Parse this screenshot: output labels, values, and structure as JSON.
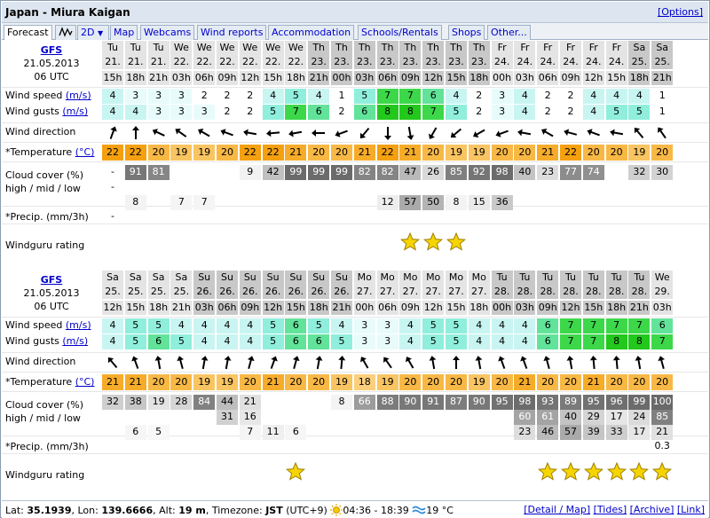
{
  "title": "Japan - Miura Kaigan",
  "options_link": "[Options]",
  "tabs": [
    "Forecast",
    "Map",
    "Webcams",
    "Wind reports",
    "Accommodation",
    "Schools/Rentals",
    "Shops",
    "Other..."
  ],
  "tab_2d": "2D",
  "labels": {
    "wind_speed": "Wind speed",
    "wind_gusts": "Wind gusts",
    "unit_ms": "(m/s)",
    "wind_direction": "Wind direction",
    "temperature": "*Temperature",
    "unit_c": "(°C)",
    "cloud1": "Cloud cover (%)",
    "cloud2": "high / mid / low",
    "precip": "*Precip. (mm/3h)",
    "rating": "Windguru rating"
  },
  "blocks": [
    {
      "model": "GFS",
      "date": "21.05.2013",
      "run": "06 UTC",
      "days": [
        "Tu",
        "Tu",
        "Tu",
        "We",
        "We",
        "We",
        "We",
        "We",
        "We",
        "Th",
        "Th",
        "Th",
        "Th",
        "Th",
        "Th",
        "Th",
        "Th",
        "Fr",
        "Fr",
        "Fr",
        "Fr",
        "Fr",
        "Fr",
        "Sa",
        "Sa"
      ],
      "dates": [
        "21.",
        "21.",
        "21.",
        "22.",
        "22.",
        "22.",
        "22.",
        "22.",
        "22.",
        "23.",
        "23.",
        "23.",
        "23.",
        "23.",
        "23.",
        "23.",
        "23.",
        "24.",
        "24.",
        "24.",
        "24.",
        "24.",
        "24.",
        "25.",
        "25."
      ],
      "hours": [
        "15h",
        "18h",
        "21h",
        "03h",
        "06h",
        "09h",
        "12h",
        "15h",
        "18h",
        "21h",
        "00h",
        "03h",
        "06h",
        "09h",
        "12h",
        "15h",
        "18h",
        "00h",
        "03h",
        "06h",
        "09h",
        "12h",
        "15h",
        "18h",
        "21h"
      ],
      "speed": [
        4,
        3,
        3,
        3,
        2,
        2,
        2,
        4,
        5,
        4,
        1,
        5,
        7,
        7,
        6,
        4,
        2,
        3,
        4,
        2,
        2,
        4,
        4,
        4,
        1
      ],
      "gusts": [
        4,
        4,
        3,
        3,
        3,
        2,
        2,
        5,
        7,
        6,
        2,
        6,
        8,
        8,
        7,
        5,
        2,
        3,
        4,
        2,
        2,
        4,
        5,
        5,
        1
      ],
      "dir": [
        20,
        0,
        -65,
        -55,
        -60,
        -70,
        -80,
        -95,
        -100,
        -90,
        -110,
        -140,
        180,
        170,
        -150,
        -130,
        -120,
        -110,
        -80,
        -60,
        -75,
        -70,
        -80,
        -40,
        -35
      ],
      "temp": [
        22,
        22,
        20,
        19,
        19,
        20,
        22,
        22,
        21,
        20,
        20,
        21,
        22,
        21,
        20,
        19,
        19,
        20,
        20,
        21,
        22,
        20,
        20,
        19,
        20
      ],
      "cloud_high": [
        "-",
        "91",
        "81",
        "",
        "",
        "",
        "9",
        "42",
        "99",
        "99",
        "99",
        "82",
        "82",
        "47",
        "26",
        "85",
        "92",
        "98",
        "40",
        "23",
        "77",
        "74",
        "",
        "32",
        "30"
      ],
      "cloud_mid": [
        "-",
        "",
        "",
        "",
        "",
        "",
        "",
        "",
        "",
        "",
        "",
        "",
        "",
        "",
        "",
        "",
        "",
        "",
        "",
        "",
        "",
        "",
        "",
        "",
        ""
      ],
      "cloud_low": [
        "",
        "8",
        "",
        "7",
        "7",
        "",
        "",
        "",
        "",
        "",
        "",
        "",
        "12",
        "57",
        "50",
        "8",
        "15",
        "36",
        "",
        "",
        "",
        "",
        "",
        "",
        ""
      ],
      "precip": [
        "-",
        "",
        "",
        "",
        "",
        "",
        "",
        "",
        "",
        "",
        "",
        "",
        "",
        "",
        "",
        "",
        "",
        "",
        "",
        "",
        "",
        "",
        "",
        "",
        ""
      ],
      "stars": [
        0,
        0,
        0,
        0,
        0,
        0,
        0,
        0,
        0,
        0,
        0,
        0,
        0,
        1,
        1,
        1,
        0,
        0,
        0,
        0,
        0,
        0,
        0,
        0,
        0
      ]
    },
    {
      "model": "GFS",
      "date": "21.05.2013",
      "run": "06 UTC",
      "days": [
        "Sa",
        "Sa",
        "Sa",
        "Sa",
        "Su",
        "Su",
        "Su",
        "Su",
        "Su",
        "Su",
        "Su",
        "Mo",
        "Mo",
        "Mo",
        "Mo",
        "Mo",
        "Mo",
        "Tu",
        "Tu",
        "Tu",
        "Tu",
        "Tu",
        "Tu",
        "Tu",
        "We"
      ],
      "dates": [
        "25.",
        "25.",
        "25.",
        "25.",
        "26.",
        "26.",
        "26.",
        "26.",
        "26.",
        "26.",
        "26.",
        "27.",
        "27.",
        "27.",
        "27.",
        "27.",
        "27.",
        "28.",
        "28.",
        "28.",
        "28.",
        "28.",
        "28.",
        "28.",
        "29."
      ],
      "hours": [
        "12h",
        "15h",
        "18h",
        "21h",
        "03h",
        "06h",
        "09h",
        "12h",
        "15h",
        "18h",
        "21h",
        "00h",
        "06h",
        "09h",
        "12h",
        "15h",
        "18h",
        "00h",
        "03h",
        "09h",
        "12h",
        "15h",
        "18h",
        "21h",
        "03h"
      ],
      "speed": [
        4,
        5,
        5,
        4,
        4,
        4,
        4,
        5,
        6,
        5,
        4,
        3,
        3,
        4,
        5,
        5,
        4,
        4,
        4,
        6,
        7,
        7,
        7,
        7,
        6
      ],
      "gusts": [
        4,
        5,
        6,
        5,
        4,
        4,
        4,
        5,
        6,
        6,
        5,
        3,
        3,
        4,
        5,
        5,
        4,
        4,
        4,
        6,
        7,
        7,
        8,
        8,
        7
      ],
      "dir": [
        -40,
        -20,
        -10,
        -15,
        10,
        10,
        15,
        20,
        15,
        10,
        5,
        -30,
        -35,
        -30,
        -10,
        0,
        -10,
        -20,
        -20,
        -15,
        -10,
        -5,
        -5,
        -10,
        -15
      ],
      "temp": [
        21,
        21,
        20,
        20,
        19,
        19,
        20,
        21,
        20,
        20,
        19,
        18,
        19,
        20,
        20,
        20,
        19,
        20,
        21,
        20,
        20,
        21,
        20,
        20,
        20
      ],
      "cloud_high": [
        "32",
        "38",
        "19",
        "28",
        "84",
        "44",
        "21",
        "",
        "",
        "",
        "8",
        "66",
        "88",
        "90",
        "91",
        "87",
        "90",
        "95",
        "98",
        "93",
        "89",
        "95",
        "96",
        "99",
        "100"
      ],
      "cloud_mid": [
        "",
        "",
        "",
        "",
        "",
        "31",
        "16",
        "",
        "",
        "",
        "",
        "",
        "",
        "",
        "",
        "",
        "",
        "",
        "60",
        "61",
        "40",
        "29",
        "17",
        "24",
        "85"
      ],
      "cloud_low": [
        "",
        "6",
        "5",
        "",
        "",
        "",
        "7",
        "11",
        "6",
        "",
        "",
        "",
        "",
        "",
        "",
        "",
        "",
        "",
        "23",
        "46",
        "57",
        "39",
        "33",
        "17",
        "21"
      ],
      "precip": [
        "",
        "",
        "",
        "",
        "",
        "",
        "",
        "",
        "",
        "",
        "",
        "",
        "",
        "",
        "",
        "",
        "",
        "",
        "",
        "",
        "",
        "",
        "",
        "",
        "0.3"
      ],
      "stars": [
        0,
        0,
        0,
        0,
        0,
        0,
        0,
        0,
        1,
        0,
        0,
        0,
        0,
        0,
        0,
        0,
        0,
        0,
        0,
        1,
        1,
        1,
        1,
        1,
        1
      ]
    }
  ],
  "footer": {
    "lat_label": "Lat:",
    "lat": "35.1939",
    "lon_label": "Lon:",
    "lon": "139.6666",
    "alt_label": "Alt:",
    "alt": "19 m",
    "tz_label": "Timezone:",
    "tz": "JST",
    "tz_off": "(UTC+9)",
    "sun": "04:36 - 18:39",
    "water": "19 °C",
    "links": [
      "[Detail / Map]",
      "[Tides]",
      "[Archive]",
      "[Link]"
    ]
  }
}
